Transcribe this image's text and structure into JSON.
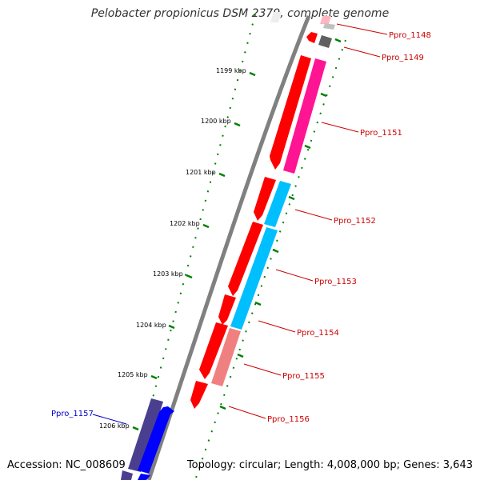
{
  "title": "Pelobacter propionicus DSM 2379, complete genome",
  "footer": {
    "accession": "Accession: NC_008609",
    "summary": "Topology: circular; Length: 4,008,000 bp; Genes: 3,643"
  },
  "colors": {
    "backbone": "#808080",
    "tick_major": "#008000",
    "label_red": "#cc0000",
    "label_blue": "#0000cc",
    "cds_red": "#ff0000",
    "cds_magenta": "#ff1493",
    "cds_cyan": "#00bfff",
    "cds_salmon": "#f08080",
    "cds_navy": "#4a3f8f",
    "cds_blue": "#0000ff",
    "cds_pink_light": "#ffb6c1",
    "cds_gray": "#606060",
    "cds_gray_light": "#c0c0c0"
  },
  "ticks": [
    {
      "label": "1199 kbp"
    },
    {
      "label": "1200 kbp"
    },
    {
      "label": "1201 kbp"
    },
    {
      "label": "1202 kbp"
    },
    {
      "label": "1203 kbp"
    },
    {
      "label": "1204 kbp"
    },
    {
      "label": "1205 kbp"
    },
    {
      "label": "1206 kbp"
    }
  ],
  "gene_labels": [
    {
      "label": "Ppro_1148",
      "color": "#cc0000"
    },
    {
      "label": "Ppro_1149",
      "color": "#cc0000"
    },
    {
      "label": "Ppro_1151",
      "color": "#cc0000"
    },
    {
      "label": "Ppro_1152",
      "color": "#cc0000"
    },
    {
      "label": "Ppro_1153",
      "color": "#cc0000"
    },
    {
      "label": "Ppro_1154",
      "color": "#cc0000"
    },
    {
      "label": "Ppro_1155",
      "color": "#cc0000"
    },
    {
      "label": "Ppro_1156",
      "color": "#cc0000"
    },
    {
      "label": "Ppro_1157",
      "color": "#0000cc"
    }
  ]
}
